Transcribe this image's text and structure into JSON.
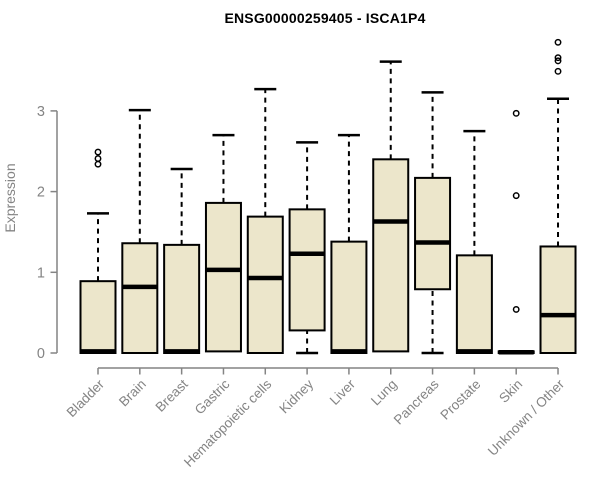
{
  "colors": {
    "box_fill": "#ECE6CB",
    "box_stroke": "#000000",
    "median": "#000000",
    "whisker": "#000000",
    "axis": "#848484",
    "tick_label": "#848484",
    "title": "#000000"
  },
  "chart_data": {
    "type": "boxplot",
    "title": "ENSG00000259405 - ISCA1P4",
    "ylabel": "Expression",
    "xlabel": "",
    "ylim": [
      0,
      3.9
    ],
    "yticks": [
      0,
      1,
      2,
      3
    ],
    "grid": false,
    "legend": null,
    "categories": [
      "Bladder",
      "Brain",
      "Breast",
      "Gastric",
      "Hematopoietic cells",
      "Kidney",
      "Liver",
      "Lung",
      "Pancreas",
      "Prostate",
      "Skin",
      "Unknown / Other"
    ],
    "series": [
      {
        "name": "Bladder",
        "low": 0,
        "q1": 0,
        "median": 0.02,
        "q3": 0.89,
        "high": 1.73,
        "outliers": [
          2.34,
          2.41,
          2.49
        ]
      },
      {
        "name": "Brain",
        "low": 0,
        "q1": 0,
        "median": 0.82,
        "q3": 1.36,
        "high": 3.01,
        "outliers": []
      },
      {
        "name": "Breast",
        "low": 0,
        "q1": 0,
        "median": 0.02,
        "q3": 1.34,
        "high": 2.28,
        "outliers": []
      },
      {
        "name": "Gastric",
        "low": 0.02,
        "q1": 0.02,
        "median": 1.03,
        "q3": 1.86,
        "high": 2.7,
        "outliers": []
      },
      {
        "name": "Hematopoietic cells",
        "low": 0,
        "q1": 0,
        "median": 0.93,
        "q3": 1.69,
        "high": 3.27,
        "outliers": []
      },
      {
        "name": "Kidney",
        "low": 0,
        "q1": 0.28,
        "median": 1.23,
        "q3": 1.78,
        "high": 2.61,
        "outliers": []
      },
      {
        "name": "Liver",
        "low": 0,
        "q1": 0,
        "median": 0.02,
        "q3": 1.38,
        "high": 2.7,
        "outliers": []
      },
      {
        "name": "Lung",
        "low": 0.02,
        "q1": 0.02,
        "median": 1.63,
        "q3": 2.4,
        "high": 3.61,
        "outliers": []
      },
      {
        "name": "Pancreas",
        "low": 0,
        "q1": 0.79,
        "median": 1.37,
        "q3": 2.17,
        "high": 3.23,
        "outliers": []
      },
      {
        "name": "Prostate",
        "low": 0,
        "q1": 0,
        "median": 0.02,
        "q3": 1.21,
        "high": 2.75,
        "outliers": []
      },
      {
        "name": "Skin",
        "low": 0,
        "q1": 0,
        "median": 0.01,
        "q3": 0.02,
        "high": 0.02,
        "outliers": [
          0.54,
          1.95,
          2.97
        ]
      },
      {
        "name": "Unknown / Other",
        "low": 0,
        "q1": 0,
        "median": 0.47,
        "q3": 1.32,
        "high": 3.15,
        "outliers": [
          3.49,
          3.62,
          3.66,
          3.85
        ]
      }
    ]
  }
}
